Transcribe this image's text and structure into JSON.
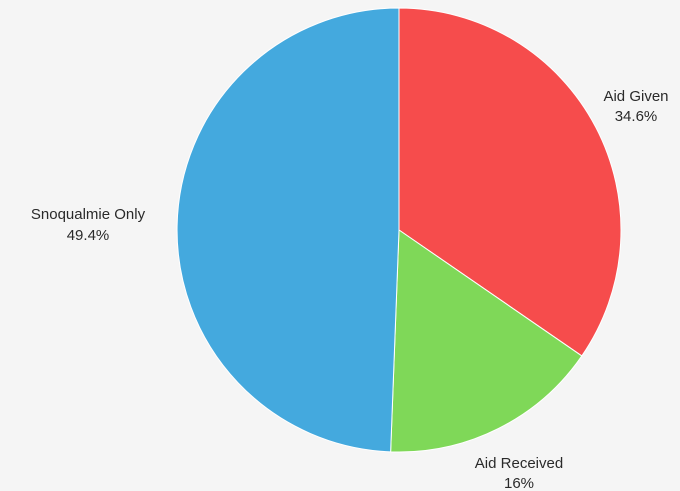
{
  "chart_data": {
    "type": "pie",
    "slices": [
      {
        "label": "Aid Given",
        "value": 34.6,
        "display": "34.6%",
        "color": "#f64c4c"
      },
      {
        "label": "Aid Received",
        "value": 16,
        "display": "16%",
        "color": "#7fd858"
      },
      {
        "label": "Snoqualmie Only",
        "value": 49.4,
        "display": "49.4%",
        "color": "#44a9de"
      }
    ],
    "start_angle_deg": 0,
    "direction": "clockwise",
    "legend": "none"
  }
}
